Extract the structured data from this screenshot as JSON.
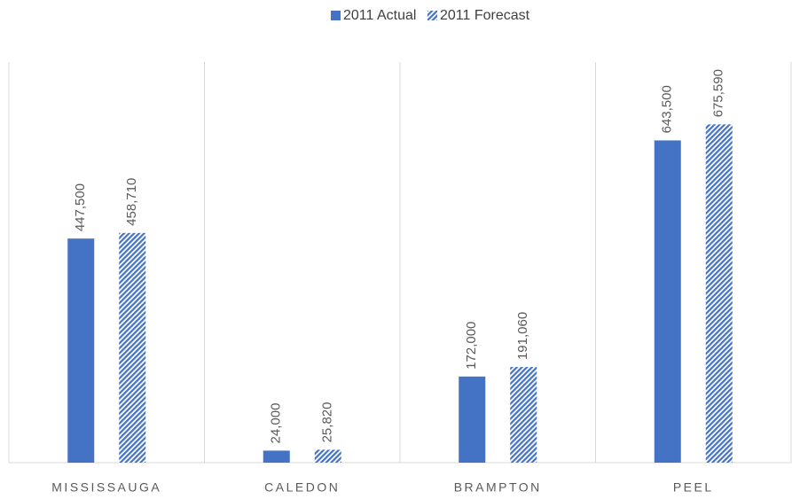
{
  "chart_data": {
    "type": "bar",
    "categories": [
      "MISSISSAUGA",
      "CALEDON",
      "BRAMPTON",
      "PEEL"
    ],
    "series": [
      {
        "name": "2011 Actual",
        "color": "#4472c4",
        "values": [
          447500,
          24000,
          172000,
          643500
        ],
        "value_labels": [
          "447,500",
          "24,000",
          "172,000",
          "643,500"
        ]
      },
      {
        "name": "2011 Forecast",
        "color": "#4472c4",
        "hatch": true,
        "values": [
          458710,
          25820,
          191060,
          675590
        ],
        "value_labels": [
          "458,710",
          "25,820",
          "191,060",
          "675,590"
        ]
      }
    ],
    "ylim": [
      0,
      800000
    ],
    "legend": "top"
  }
}
